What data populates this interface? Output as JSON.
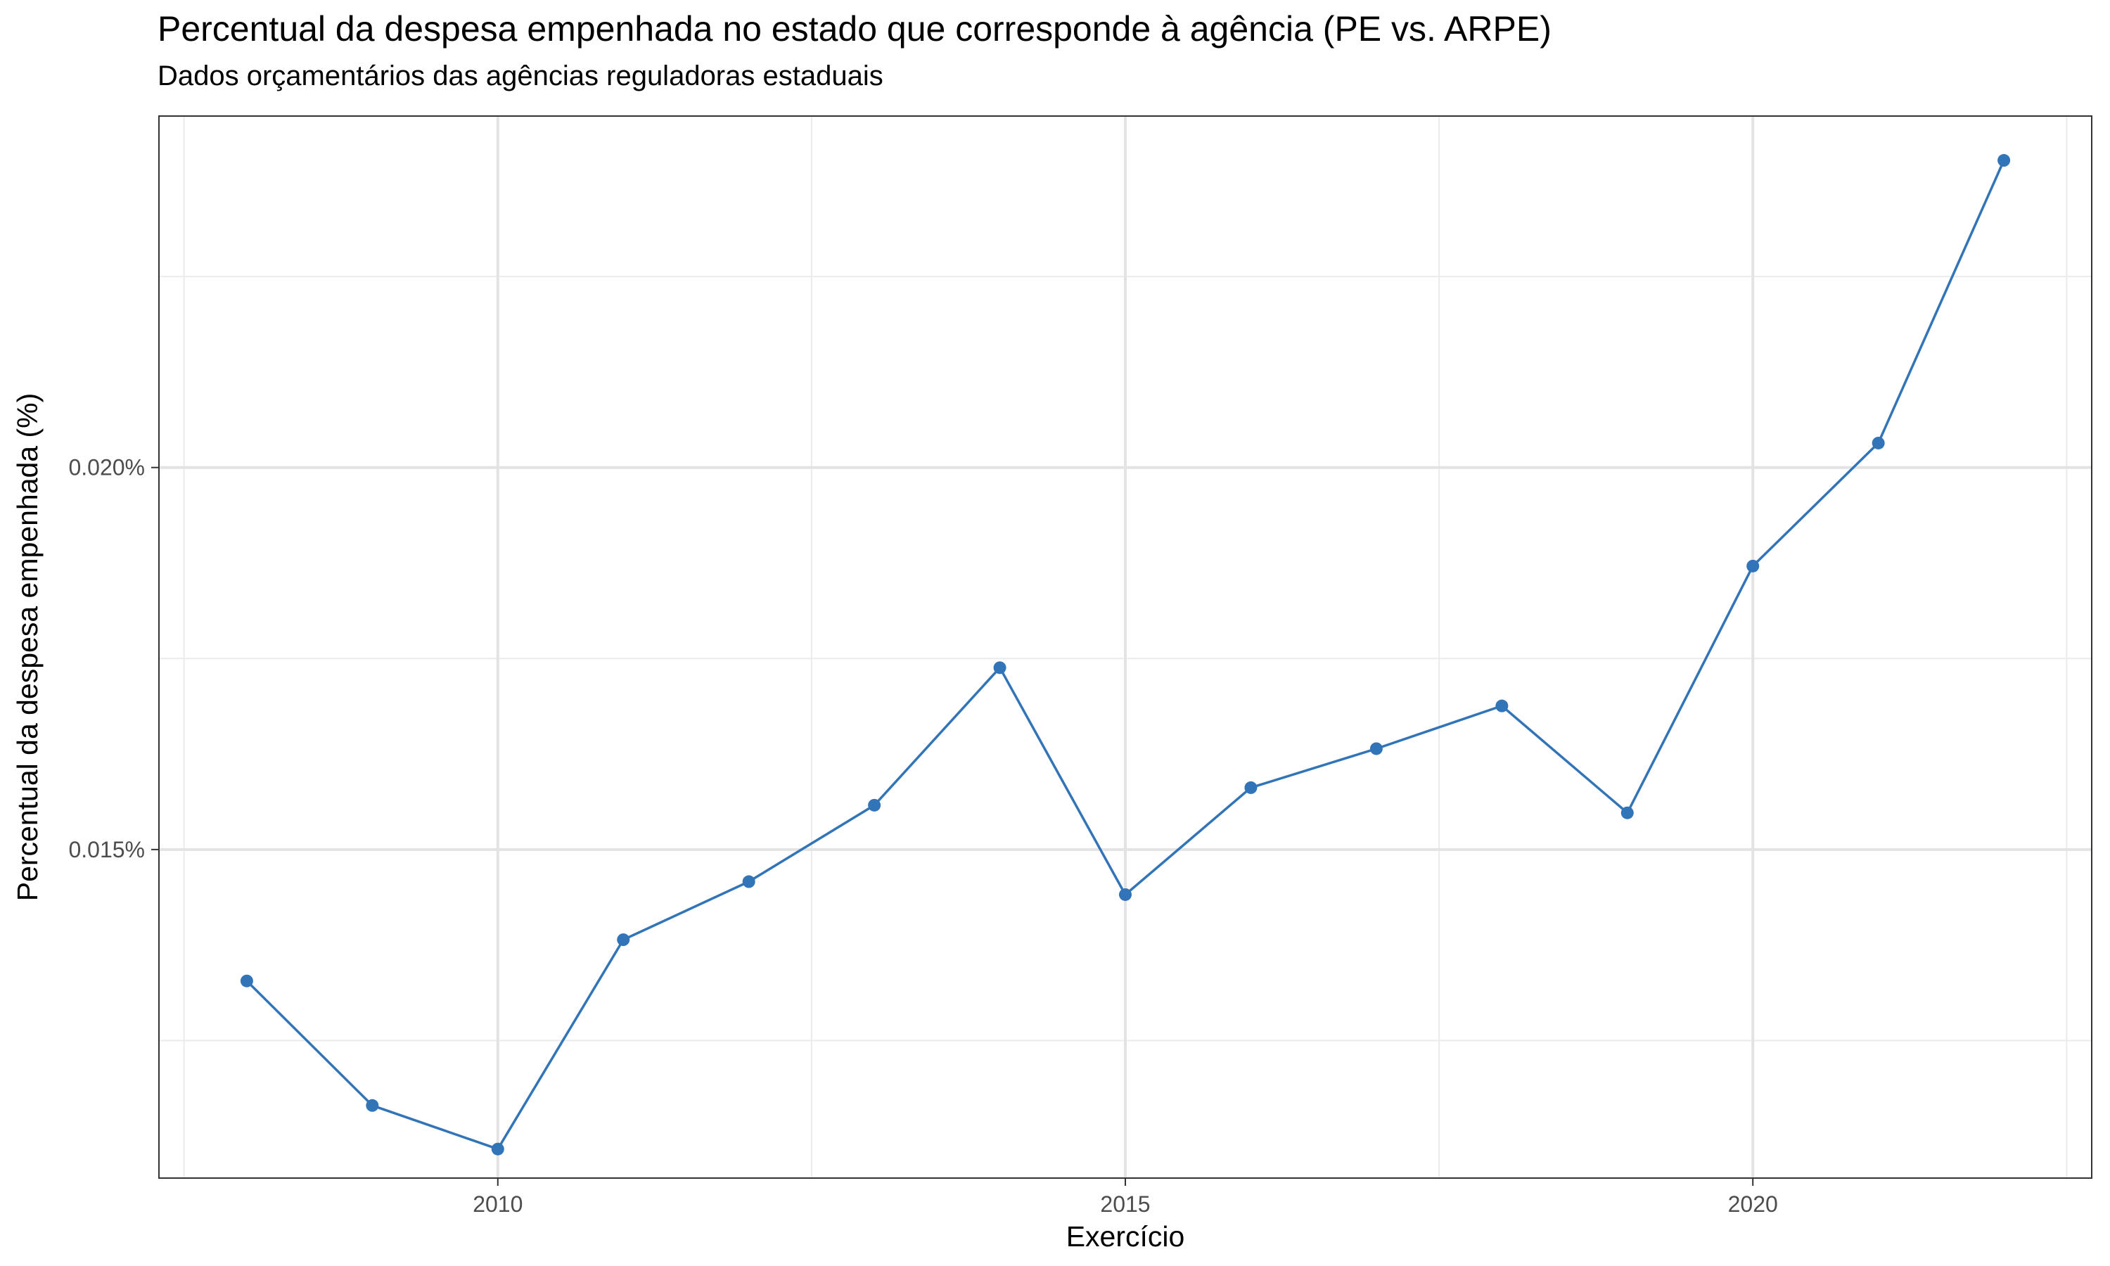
{
  "chart_data": {
    "type": "line",
    "title": "Percentual da despesa empenhada no estado que corresponde à agência (PE vs. ARPE)",
    "subtitle": "Dados orçamentários das agências reguladoras estaduais",
    "xlabel": "Exercício",
    "ylabel": "Percentual da despesa empenhada (%)",
    "x": [
      2008,
      2009,
      2010,
      2011,
      2012,
      2013,
      2014,
      2015,
      2016,
      2017,
      2018,
      2019,
      2020,
      2021,
      2022
    ],
    "series": [
      {
        "values": [
          0.01328,
          0.01165,
          0.01108,
          0.01382,
          0.01458,
          0.01558,
          0.01738,
          0.01441,
          0.01581,
          0.01632,
          0.01688,
          0.01548,
          0.01871,
          0.02032,
          0.02402
        ],
        "color": "#3274b8"
      }
    ],
    "xlim": [
      2007.3,
      2022.7
    ],
    "ylim": [
      0.0107,
      0.0246
    ],
    "x_ticks": [
      2010,
      2015,
      2020
    ],
    "x_tick_labels": [
      "2010",
      "2015",
      "2020"
    ],
    "x_minor_ticks": [
      2007.5,
      2012.5,
      2017.5,
      2022.5
    ],
    "y_ticks": [
      0.015,
      0.02
    ],
    "y_tick_labels": [
      "0.015%",
      "0.020%"
    ],
    "y_minor_ticks": [
      0.0125,
      0.0175,
      0.0225
    ],
    "grid": true,
    "legend": "none"
  }
}
